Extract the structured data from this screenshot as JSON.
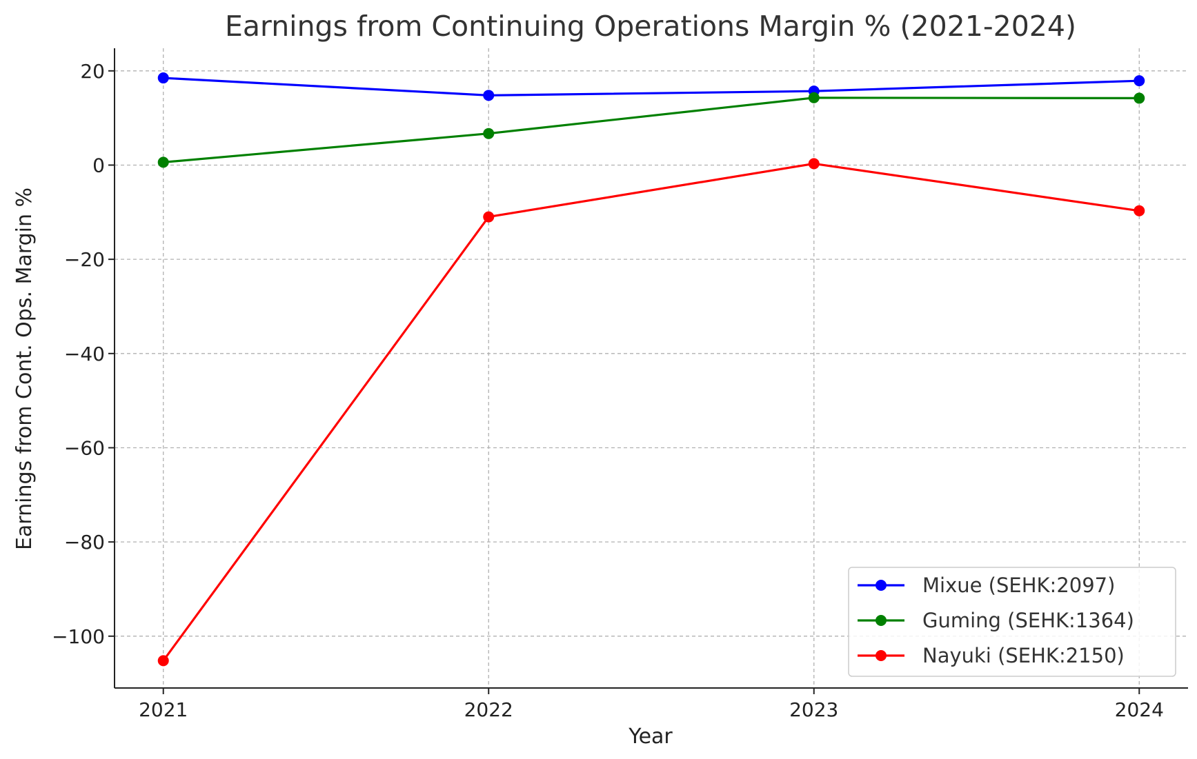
{
  "chart_data": {
    "type": "line",
    "title": "Earnings from Continuing Operations Margin % (2021-2024)",
    "xlabel": "Year",
    "ylabel": "Earnings from Cont. Ops. Margin %",
    "categories": [
      "2021",
      "2022",
      "2023",
      "2024"
    ],
    "xlim": [
      2020.85,
      2024.15
    ],
    "ylim": [
      -111,
      24.8
    ],
    "yticks": [
      20,
      0,
      -20,
      -40,
      -60,
      -80,
      -100
    ],
    "ytick_labels": [
      "20",
      "0",
      "−20",
      "−40",
      "−60",
      "−80",
      "−100"
    ],
    "grid": true,
    "legend_position": "bottom-right",
    "series": [
      {
        "name": "Mixue (SEHK:2097)",
        "color": "#0000ff",
        "values": [
          18.5,
          14.8,
          15.7,
          17.9
        ]
      },
      {
        "name": "Guming (SEHK:1364)",
        "color": "#008000",
        "values": [
          0.6,
          6.7,
          14.3,
          14.2
        ]
      },
      {
        "name": "Nayuki (SEHK:2150)",
        "color": "#ff0000",
        "values": [
          -105.2,
          -11.0,
          0.3,
          -9.7
        ]
      }
    ]
  }
}
